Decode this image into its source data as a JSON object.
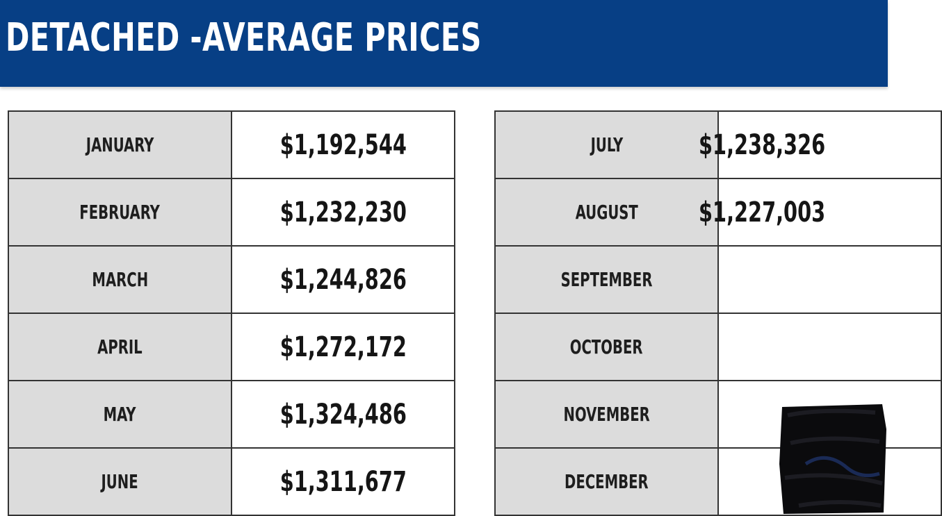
{
  "title": "DETACHED -AVERAGE PRICES",
  "colors": {
    "header": "#073f85",
    "month_cell": "#dcdcdc",
    "border": "#333333"
  },
  "left_table": [
    {
      "month": "JANUARY",
      "price": "$1,192,544"
    },
    {
      "month": "FEBRUARY",
      "price": "$1,232,230"
    },
    {
      "month": "MARCH",
      "price": "$1,244,826"
    },
    {
      "month": "APRIL",
      "price": "$1,272,172"
    },
    {
      "month": "MAY",
      "price": "$1,324,486"
    },
    {
      "month": "JUNE",
      "price": "$1,311,677"
    }
  ],
  "right_table": [
    {
      "month": "JULY",
      "price": "$1,238,326"
    },
    {
      "month": "AUGUST",
      "price": "$1,227,003"
    },
    {
      "month": "SEPTEMBER",
      "price": ""
    },
    {
      "month": "OCTOBER",
      "price": ""
    },
    {
      "month": "NOVEMBER",
      "price": ""
    },
    {
      "month": "DECEMBER",
      "price": ""
    }
  ]
}
